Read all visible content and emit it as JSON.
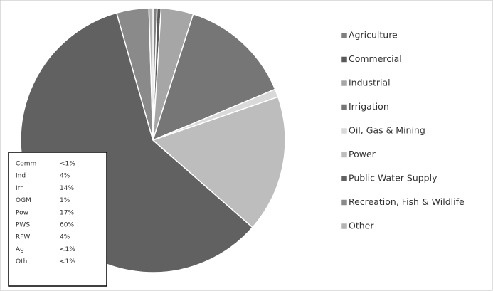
{
  "chart_data": {
    "type": "pie",
    "categories": [
      "Agriculture",
      "Commercial",
      "Industrial",
      "Irrigation",
      "Oil, Gas & Mining",
      "Power",
      "Public Water Supply",
      "Recreation, Fish & Wildlife",
      "Other"
    ],
    "values": [
      0.5,
      0.5,
      4,
      14,
      1,
      17,
      60,
      4,
      0.5
    ],
    "colors": [
      "#808080",
      "#5a5a5a",
      "#a6a6a6",
      "#767676",
      "#d9d9d9",
      "#bdbdbd",
      "#616161",
      "#8a8a8a",
      "#b3b3b3"
    ],
    "legend": "right"
  },
  "table": {
    "rows": [
      [
        "Comm",
        "<1%"
      ],
      [
        "Ind",
        "4%"
      ],
      [
        "Irr",
        "14%"
      ],
      [
        "OGM",
        "1%"
      ],
      [
        "Pow",
        "17%"
      ],
      [
        "PWS",
        "60%"
      ],
      [
        "RFW",
        "4%"
      ],
      [
        "Ag",
        "<1%"
      ],
      [
        "Oth",
        "<1%"
      ]
    ]
  }
}
